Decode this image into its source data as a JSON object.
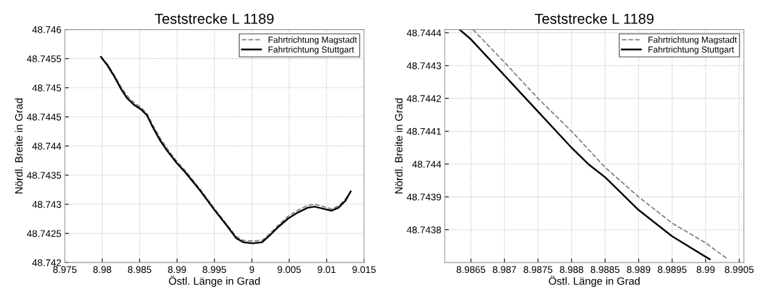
{
  "chart_data": [
    {
      "type": "line",
      "title": "Teststrecke L 1189",
      "xlabel": "Östl. Länge in Grad",
      "ylabel": "Nördl. Breite in Grad",
      "xlim": [
        8.975,
        9.015
      ],
      "xticks": [
        8.975,
        8.98,
        8.985,
        8.99,
        8.995,
        9,
        9.005,
        9.01,
        9.015
      ],
      "ylim": [
        48.742,
        48.746
      ],
      "yticks": [
        48.742,
        48.7425,
        48.743,
        48.7435,
        48.744,
        48.7445,
        48.745,
        48.7455,
        48.746
      ],
      "grid": true,
      "legend": "top right",
      "series": [
        {
          "name": "Fahrtrichtung Magstadt",
          "color": "#808080",
          "line_style": "dashed",
          "x": [
            8.97983,
            8.98072,
            8.98168,
            8.98247,
            8.98327,
            8.98422,
            8.98518,
            8.98597,
            8.98677,
            8.98772,
            8.98867,
            8.98995,
            8.99122,
            8.99313,
            8.99503,
            8.99662,
            8.9979,
            8.99885,
            9.00012,
            9.00139,
            9.00235,
            9.00362,
            9.00489,
            9.00616,
            9.00744,
            9.00839,
            9.00934,
            9.01062,
            9.01157,
            9.01252,
            9.01322
          ],
          "values": [
            48.74553,
            48.7454,
            48.7452,
            48.74502,
            48.74487,
            48.74475,
            48.74466,
            48.74456,
            48.74436,
            48.74414,
            48.74396,
            48.74374,
            48.74356,
            48.74325,
            48.74292,
            48.74266,
            48.74245,
            48.74238,
            48.74237,
            48.74238,
            48.74249,
            48.74265,
            48.7428,
            48.7429,
            48.74298,
            48.743,
            48.74297,
            48.74292,
            48.74297,
            48.74309,
            48.74322
          ]
        },
        {
          "name": "Fahrtrichtung Stuttgart",
          "color": "#000000",
          "line_style": "solid",
          "x": [
            8.97983,
            8.98072,
            8.98168,
            8.98247,
            8.98327,
            8.98422,
            8.98518,
            8.98597,
            8.98677,
            8.98772,
            8.98867,
            8.98995,
            8.99122,
            8.99313,
            8.99503,
            8.99662,
            8.9979,
            8.99885,
            9.00012,
            9.00139,
            9.00235,
            9.00362,
            9.00489,
            9.00616,
            9.00744,
            9.00839,
            9.00934,
            9.01062,
            9.01157,
            9.01252,
            9.01322
          ],
          "values": [
            48.74553,
            48.74538,
            48.74518,
            48.74499,
            48.74483,
            48.74471,
            48.74463,
            48.74453,
            48.74432,
            48.7441,
            48.74392,
            48.74371,
            48.74353,
            48.74323,
            48.7429,
            48.74264,
            48.74242,
            48.74235,
            48.74233,
            48.74235,
            48.74246,
            48.74262,
            48.74276,
            48.74286,
            48.74294,
            48.74296,
            48.74293,
            48.74289,
            48.74294,
            48.74306,
            48.74322
          ]
        }
      ]
    },
    {
      "type": "line",
      "title": "Teststrecke L 1189",
      "xlabel": "Östl. Länge in Grad",
      "ylabel": "Nördl. Breite in Grad",
      "xlim": [
        8.98611,
        8.99057
      ],
      "xticks": [
        8.9865,
        8.987,
        8.9875,
        8.988,
        8.9885,
        8.989,
        8.9895,
        8.99,
        8.9905
      ],
      "ylim": [
        48.7437,
        48.74441
      ],
      "yticks": [
        48.7438,
        48.7439,
        48.744,
        48.7441,
        48.7442,
        48.7443,
        48.7444
      ],
      "grid": true,
      "legend": "top right",
      "series": [
        {
          "name": "Fahrtrichtung Magstadt",
          "color": "#808080",
          "line_style": "dashed",
          "x": [
            8.98653,
            8.987,
            8.9875,
            8.988,
            8.9885,
            8.989,
            8.9895,
            8.99,
            8.99033
          ],
          "values": [
            48.74441,
            48.74431,
            48.7442,
            48.7441,
            48.74399,
            48.7439,
            48.74382,
            48.74376,
            48.74371
          ]
        },
        {
          "name": "Fahrtrichtung Stuttgart",
          "color": "#000000",
          "line_style": "solid",
          "x": [
            8.98633,
            8.9865,
            8.987,
            8.9875,
            8.988,
            8.98825,
            8.9885,
            8.989,
            8.9895,
            8.99006
          ],
          "values": [
            48.74441,
            48.74438,
            48.74427,
            48.74416,
            48.74405,
            48.744,
            48.74396,
            48.74386,
            48.74378,
            48.74371
          ]
        }
      ]
    }
  ]
}
